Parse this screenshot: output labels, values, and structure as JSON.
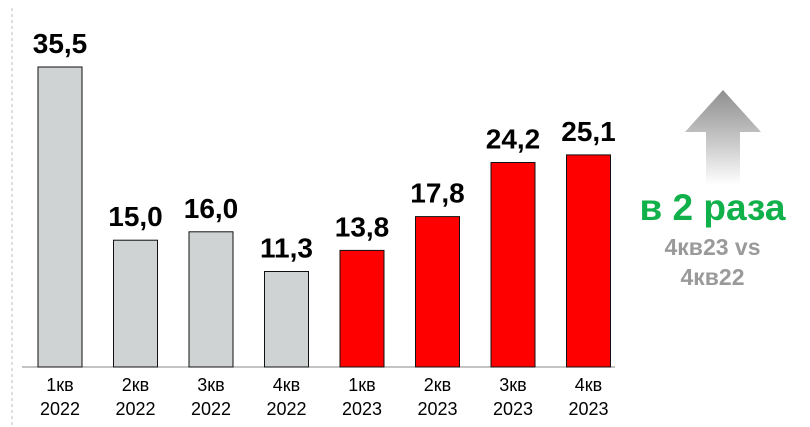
{
  "chart_data": {
    "type": "bar",
    "categories": [
      [
        "1кв",
        "2022"
      ],
      [
        "2кв",
        "2022"
      ],
      [
        "3кв",
        "2022"
      ],
      [
        "4кв",
        "2022"
      ],
      [
        "1кв",
        "2023"
      ],
      [
        "2кв",
        "2023"
      ],
      [
        "3кв",
        "2023"
      ],
      [
        "4кв",
        "2023"
      ]
    ],
    "values": [
      35.5,
      15.0,
      16.0,
      11.3,
      13.8,
      17.8,
      24.2,
      25.1
    ],
    "value_labels": [
      "35,5",
      "15,0",
      "16,0",
      "11,3",
      "13,8",
      "17,8",
      "24,2",
      "25,1"
    ],
    "series_colors": [
      "#d0d3d4",
      "#d0d3d4",
      "#d0d3d4",
      "#d0d3d4",
      "#ff0000",
      "#ff0000",
      "#ff0000",
      "#ff0000"
    ],
    "title": "",
    "xlabel": "",
    "ylabel": "",
    "ylim": [
      0,
      35.5
    ],
    "grid": false,
    "legend": "none"
  },
  "annotation": {
    "headline": "в 2 раза",
    "subtext_line1": "4кв23 vs",
    "subtext_line2": "4кв22",
    "icon": "up-arrow-icon",
    "headline_color": "#10b04a",
    "subtext_color": "#9a9a9a"
  }
}
